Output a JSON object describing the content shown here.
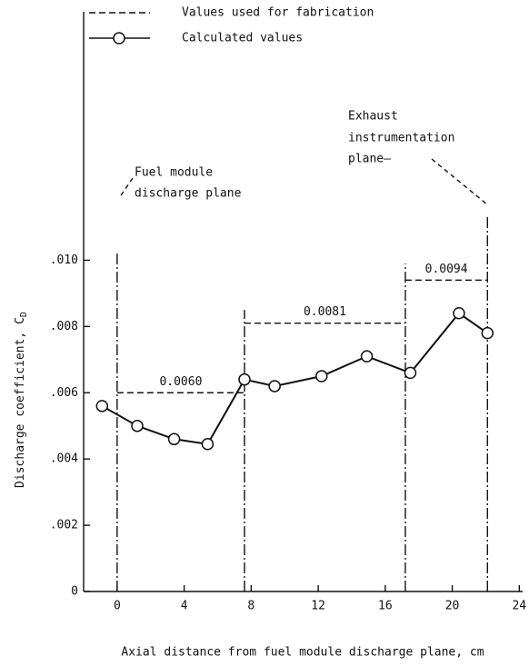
{
  "chart_data": {
    "type": "line",
    "xlabel": "Axial distance from fuel module discharge plane, cm",
    "ylabel": "Discharge coefficient, C",
    "ylabel_subscript": "D",
    "xlim": [
      -2,
      24.2
    ],
    "ylim": [
      0,
      0.0175
    ],
    "xticks": [
      0,
      4,
      8,
      12,
      16,
      20,
      24
    ],
    "yticks": [
      0,
      {
        "value": 0.002,
        "label": ".002"
      },
      {
        "value": 0.004,
        "label": ".004"
      },
      {
        "value": 0.006,
        "label": ".006"
      },
      {
        "value": 0.008,
        "label": ".008"
      },
      {
        "value": 0.01,
        "label": ".010"
      }
    ],
    "series": [
      {
        "name": "Calculated values",
        "color": "#111111",
        "x": [
          -0.9,
          1.2,
          3.4,
          5.4,
          7.6,
          9.4,
          12.2,
          14.9,
          17.5,
          20.4,
          22.1
        ],
        "values": [
          0.0056,
          0.005,
          0.0046,
          0.00445,
          0.0064,
          0.0062,
          0.0065,
          0.0071,
          0.0066,
          0.0084,
          0.0078
        ]
      }
    ],
    "fabrication": {
      "name": "Values used for fabrication",
      "color": "#111111",
      "segments": [
        {
          "x": [
            0,
            7.6
          ],
          "value": 0.006,
          "label": "0.0060"
        },
        {
          "x": [
            7.6,
            17.2
          ],
          "value": 0.0081,
          "label": "0.0081"
        },
        {
          "x": [
            17.2,
            22.1
          ],
          "value": 0.0094,
          "label": "0.0094"
        }
      ]
    },
    "planes": [
      {
        "x": 0,
        "top": 0.0102
      },
      {
        "x": 7.6,
        "top": 0.0085
      },
      {
        "x": 17.2,
        "top": 0.0099
      },
      {
        "x": 22.1,
        "top": 0.0113
      }
    ],
    "annotations": [
      {
        "lines": [
          "Fuel module",
          "discharge plane"
        ]
      },
      {
        "lines": [
          "Exhaust",
          "instrumentation",
          "plane—"
        ]
      }
    ]
  }
}
